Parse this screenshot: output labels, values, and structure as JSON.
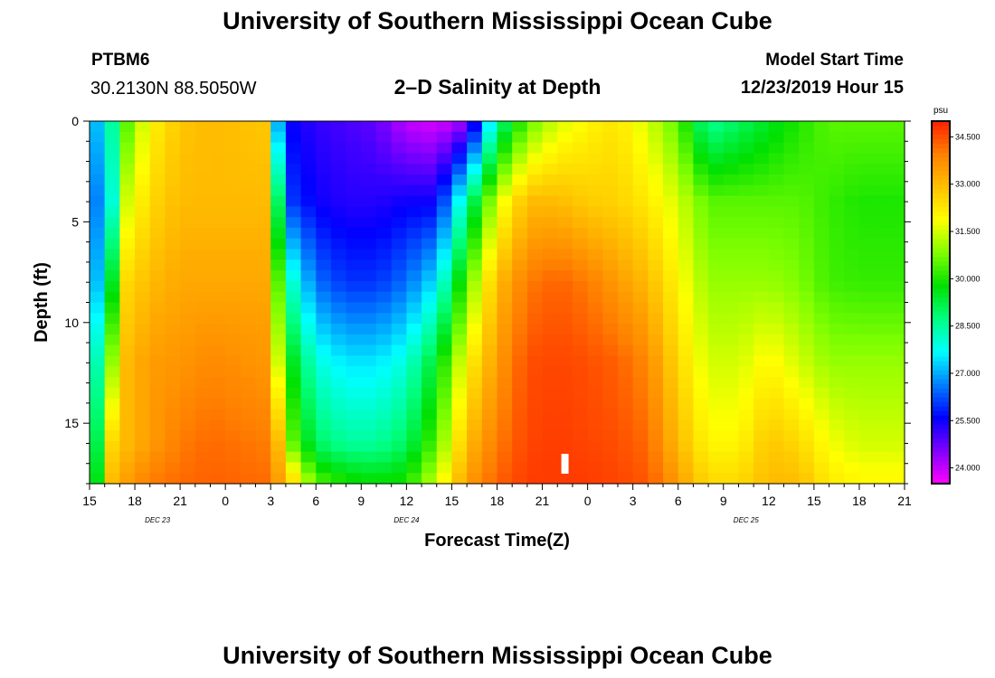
{
  "header": {
    "title": "University of Southern Mississippi Ocean Cube",
    "station_id": "PTBM6",
    "coordinates": "30.2130N 88.5050W",
    "plot_title": "2–D Salinity at Depth",
    "model_start_label": "Model Start Time",
    "model_start_value": "12/23/2019 Hour 15"
  },
  "footer": {
    "title": "University of Southern Mississippi Ocean Cube"
  },
  "colors": {
    "scale": [
      "#ff00ff",
      "#8000ff",
      "#0000ff",
      "#0080ff",
      "#00ffff",
      "#00ff80",
      "#00e000",
      "#80ff00",
      "#ffff00",
      "#ffc000",
      "#ff8000",
      "#ff2000"
    ]
  },
  "chart_data": {
    "type": "heatmap",
    "title": "2–D Salinity at Depth",
    "xlabel": "Forecast Time(Z)",
    "ylabel": "Depth (ft)",
    "x_range_hours": [
      0,
      54
    ],
    "y_range_ft": [
      0,
      18
    ],
    "x_ticks": [
      {
        "h": 0,
        "label": "15"
      },
      {
        "h": 3,
        "label": "18"
      },
      {
        "h": 6,
        "label": "21"
      },
      {
        "h": 9,
        "label": "0"
      },
      {
        "h": 12,
        "label": "3"
      },
      {
        "h": 15,
        "label": "6"
      },
      {
        "h": 18,
        "label": "9"
      },
      {
        "h": 21,
        "label": "12"
      },
      {
        "h": 24,
        "label": "15"
      },
      {
        "h": 27,
        "label": "18"
      },
      {
        "h": 30,
        "label": "21"
      },
      {
        "h": 33,
        "label": "0"
      },
      {
        "h": 36,
        "label": "3"
      },
      {
        "h": 39,
        "label": "6"
      },
      {
        "h": 42,
        "label": "9"
      },
      {
        "h": 45,
        "label": "12"
      },
      {
        "h": 48,
        "label": "15"
      },
      {
        "h": 51,
        "label": "18"
      },
      {
        "h": 54,
        "label": "21"
      }
    ],
    "date_labels": [
      {
        "h": 4.5,
        "label": "DEC 23"
      },
      {
        "h": 21,
        "label": "DEC 24"
      },
      {
        "h": 43.5,
        "label": "DEC 25"
      }
    ],
    "y_ticks": [
      {
        "d": 0,
        "label": "0"
      },
      {
        "d": 5,
        "label": "5"
      },
      {
        "d": 10,
        "label": "10"
      },
      {
        "d": 15,
        "label": "15"
      }
    ],
    "colorbar": {
      "unit": "psu",
      "min": 23.5,
      "max": 35.0,
      "labels": [
        "34.500",
        "33.000",
        "31.500",
        "30.000",
        "28.500",
        "27.000",
        "25.500",
        "24.000"
      ],
      "label_values": [
        34.5,
        33.0,
        31.5,
        30.0,
        28.5,
        27.0,
        25.5,
        24.0
      ]
    },
    "current_time_marker_hour": 31.5,
    "profiles": {
      "hours": [
        0,
        1.5,
        2.5,
        4,
        6,
        8,
        11.5,
        12.5,
        13.5,
        15,
        17,
        19,
        21,
        23,
        25,
        27,
        29,
        31,
        33,
        35,
        37,
        39,
        41,
        43,
        45,
        47,
        49,
        51,
        54
      ],
      "depths": [
        0,
        4,
        8,
        12,
        16,
        18
      ],
      "salinity": [
        [
          26.5,
          26.0,
          26.0,
          27.0,
          27.5,
          28.0
        ],
        [
          28.5,
          28.0,
          29.5,
          31.0,
          32.5,
          33.0
        ],
        [
          30.5,
          31.5,
          32.5,
          33.0,
          33.0,
          33.5
        ],
        [
          32.0,
          32.5,
          33.0,
          33.5,
          33.5,
          34.0
        ],
        [
          32.8,
          33.0,
          33.3,
          33.6,
          34.0,
          34.2
        ],
        [
          33.0,
          33.0,
          33.3,
          33.8,
          34.2,
          34.3
        ],
        [
          32.8,
          33.0,
          33.3,
          33.6,
          34.0,
          34.2
        ],
        [
          27.0,
          29.0,
          30.5,
          31.5,
          33.0,
          33.5
        ],
        [
          25.5,
          26.0,
          28.0,
          29.5,
          30.5,
          32.5
        ],
        [
          25.2,
          25.5,
          26.5,
          28.0,
          29.0,
          30.5
        ],
        [
          25.0,
          25.3,
          26.0,
          27.5,
          28.5,
          30.0
        ],
        [
          24.8,
          25.3,
          26.0,
          27.5,
          28.5,
          29.8
        ],
        [
          24.0,
          25.5,
          26.5,
          28.0,
          29.0,
          30.0
        ],
        [
          23.8,
          25.5,
          27.5,
          29.5,
          30.5,
          31.5
        ],
        [
          24.3,
          28.5,
          30.5,
          32.0,
          33.0,
          33.5
        ],
        [
          28.5,
          31.5,
          33.0,
          33.5,
          34.0,
          34.3
        ],
        [
          30.5,
          33.0,
          34.0,
          34.5,
          34.6,
          34.7
        ],
        [
          31.5,
          33.0,
          34.3,
          34.6,
          34.7,
          34.7
        ],
        [
          32.0,
          32.7,
          34.0,
          34.5,
          34.6,
          34.7
        ],
        [
          32.3,
          32.6,
          33.5,
          34.3,
          34.5,
          34.6
        ],
        [
          31.5,
          32.2,
          33.0,
          33.8,
          34.2,
          34.4
        ],
        [
          30.5,
          31.5,
          32.0,
          32.5,
          33.0,
          33.5
        ],
        [
          28.5,
          30.5,
          31.0,
          31.5,
          32.0,
          32.5
        ],
        [
          29.0,
          30.5,
          31.0,
          31.5,
          32.0,
          32.5
        ],
        [
          29.5,
          30.5,
          31.0,
          32.0,
          32.8,
          33.0
        ],
        [
          30.0,
          30.5,
          30.8,
          31.5,
          32.5,
          33.0
        ],
        [
          30.5,
          30.2,
          30.3,
          31.0,
          31.8,
          32.2
        ],
        [
          30.5,
          30.0,
          30.2,
          31.0,
          31.5,
          32.0
        ],
        [
          30.5,
          30.0,
          30.2,
          31.0,
          31.5,
          32.0
        ]
      ]
    }
  }
}
